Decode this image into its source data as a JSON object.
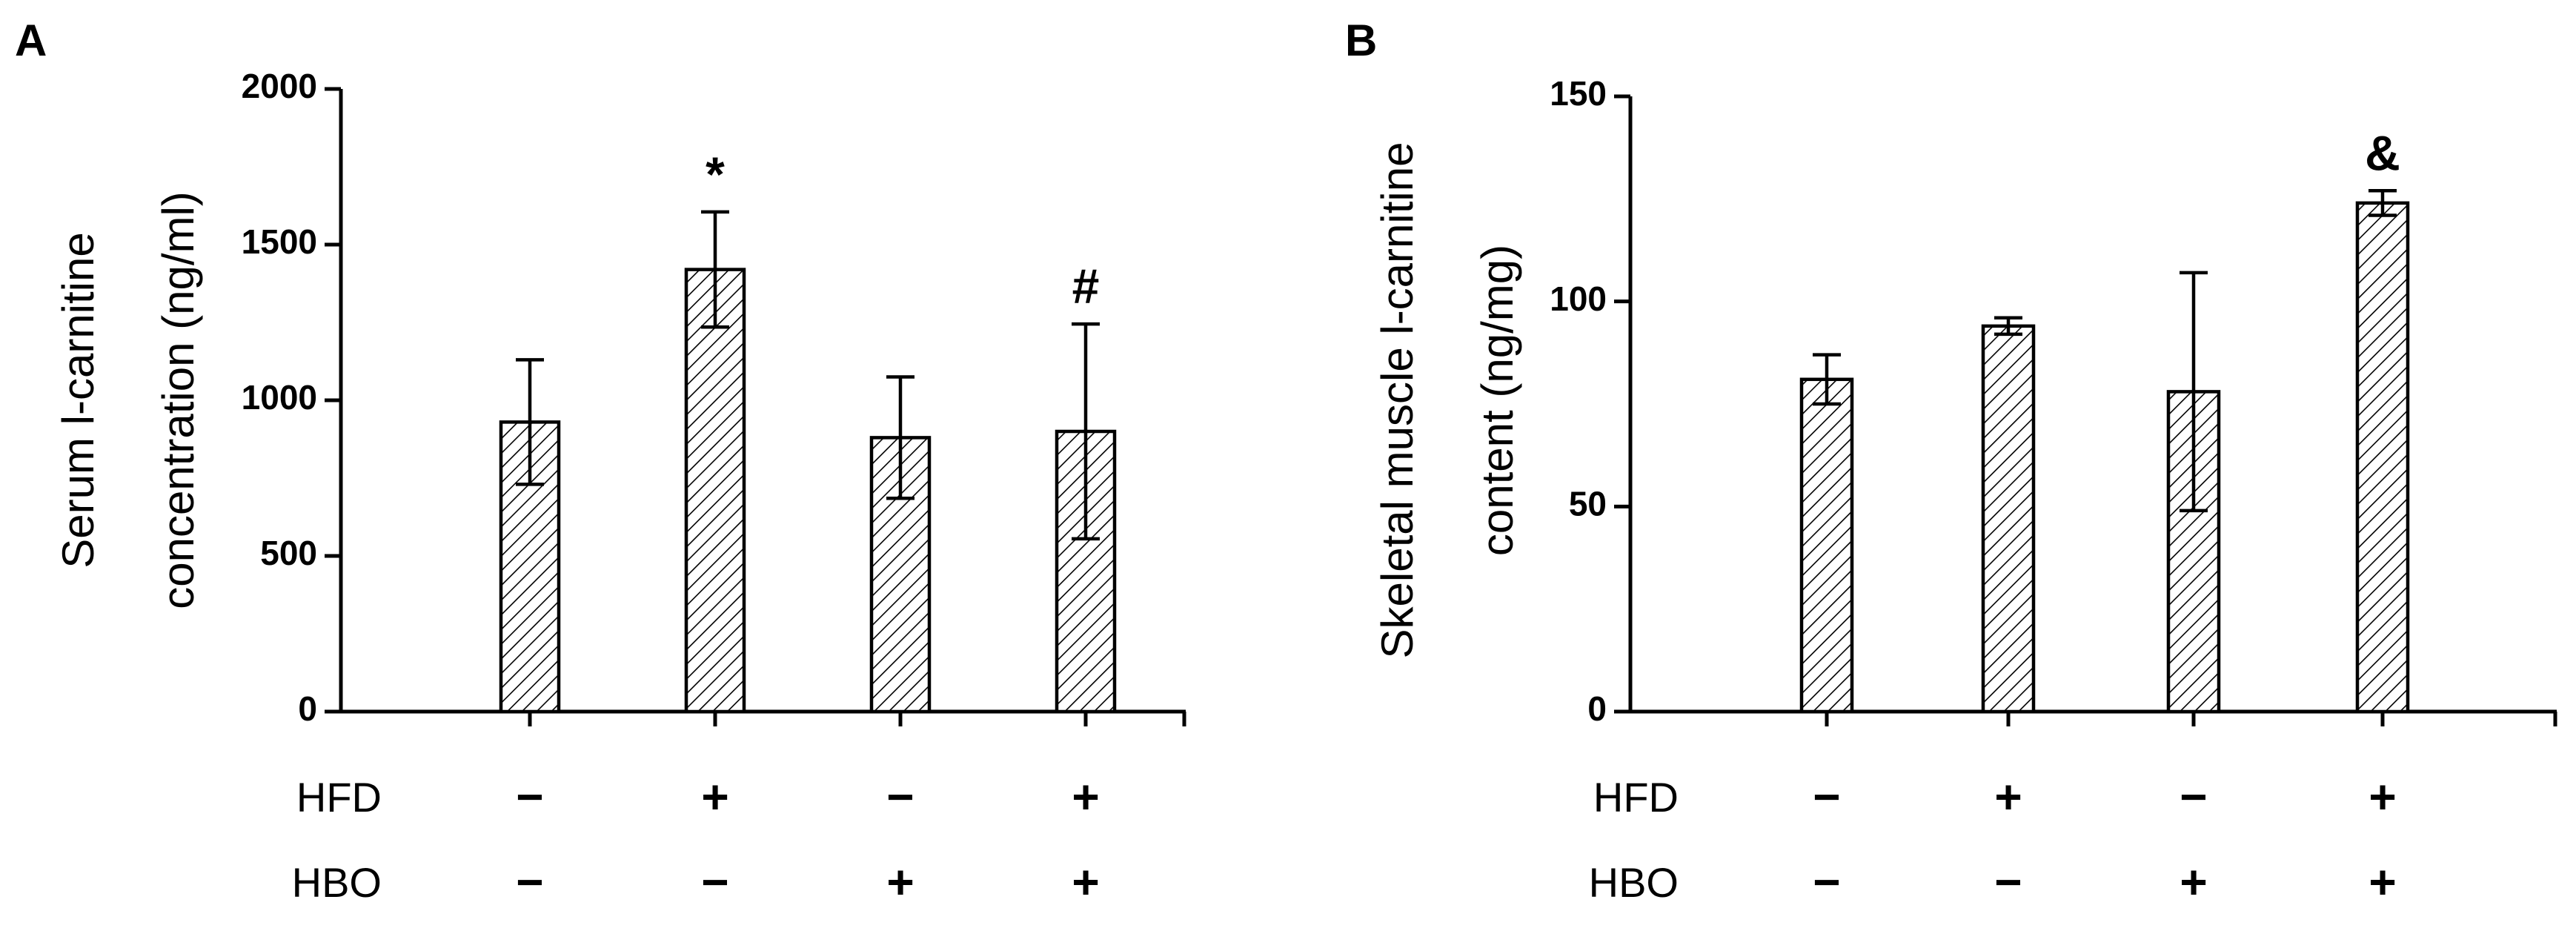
{
  "chart_data": [
    {
      "panel": "A",
      "type": "bar",
      "ylabel_line1": "Serum l-carnitine",
      "ylabel_line2": "concentration (ng/ml)",
      "ylim": [
        0,
        2000
      ],
      "yticks": [
        "0",
        "500",
        "1000",
        "1500",
        "2000"
      ],
      "ytick_values": [
        0,
        500,
        1000,
        1500,
        2000
      ],
      "values": [
        930,
        1420,
        880,
        900
      ],
      "errors": [
        200,
        185,
        195,
        345
      ],
      "annotations": [
        "",
        "*",
        "",
        "#"
      ],
      "rows": [
        {
          "label": "HFD",
          "signs": [
            "−",
            "+",
            "−",
            "+"
          ]
        },
        {
          "label": "HBO",
          "signs": [
            "−",
            "−",
            "+",
            "+"
          ]
        }
      ],
      "fill": "hatched"
    },
    {
      "panel": "B",
      "type": "bar",
      "ylabel_line1": "Skeletal muscle l-carnitine",
      "ylabel_line2": "content (ng/mg)",
      "ylim": [
        0,
        150
      ],
      "yticks": [
        "0",
        "50",
        "100",
        "150"
      ],
      "ytick_values": [
        0,
        50,
        100,
        150
      ],
      "values": [
        81,
        94,
        78,
        124
      ],
      "errors": [
        6,
        2,
        29,
        3
      ],
      "annotations": [
        "",
        "",
        "",
        "&"
      ],
      "rows": [
        {
          "label": "HFD",
          "signs": [
            "−",
            "+",
            "−",
            "+"
          ]
        },
        {
          "label": "HBO",
          "signs": [
            "−",
            "−",
            "+",
            "+"
          ]
        }
      ],
      "fill": "hatched"
    }
  ],
  "colors": {
    "ink": "#000000",
    "bar_fill": "#ffffff",
    "hatch": "#000000"
  }
}
